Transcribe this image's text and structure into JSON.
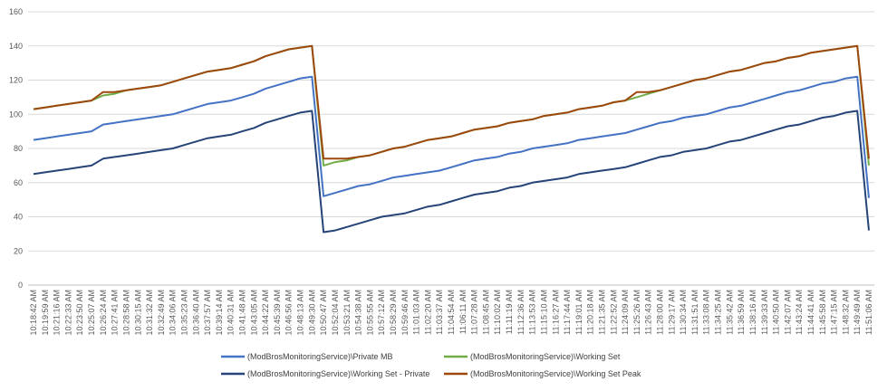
{
  "chart_data": {
    "type": "line",
    "title": "",
    "xlabel": "",
    "ylabel": "",
    "ylim": [
      0,
      160
    ],
    "yticks": [
      0,
      20,
      40,
      60,
      80,
      100,
      120,
      140,
      160
    ],
    "grid": "horizontal",
    "legend_position": "bottom",
    "x": [
      "10:18:42 AM",
      "10:19:59 AM",
      "10:21:16 AM",
      "10:22:33 AM",
      "10:23:50 AM",
      "10:25:07 AM",
      "10:26:24 AM",
      "10:27:41 AM",
      "10:28:58 AM",
      "10:30:15 AM",
      "10:31:32 AM",
      "10:32:49 AM",
      "10:34:06 AM",
      "10:35:23 AM",
      "10:36:40 AM",
      "10:37:57 AM",
      "10:39:14 AM",
      "10:40:31 AM",
      "10:41:48 AM",
      "10:43:05 AM",
      "10:44:22 AM",
      "10:45:39 AM",
      "10:46:56 AM",
      "10:48:13 AM",
      "10:49:30 AM",
      "10:50:47 AM",
      "10:52:04 AM",
      "10:53:21 AM",
      "10:54:38 AM",
      "10:55:55 AM",
      "10:57:12 AM",
      "10:58:29 AM",
      "10:59:46 AM",
      "11:01:03 AM",
      "11:02:20 AM",
      "11:03:37 AM",
      "11:04:54 AM",
      "11:06:11 AM",
      "11:07:28 AM",
      "11:08:45 AM",
      "11:10:02 AM",
      "11:11:19 AM",
      "11:12:36 AM",
      "11:13:53 AM",
      "11:15:10 AM",
      "11:16:27 AM",
      "11:17:44 AM",
      "11:19:01 AM",
      "11:20:18 AM",
      "11:21:35 AM",
      "11:22:52 AM",
      "11:24:09 AM",
      "11:25:26 AM",
      "11:26:43 AM",
      "11:28:00 AM",
      "11:29:17 AM",
      "11:30:34 AM",
      "11:31:51 AM",
      "11:33:08 AM",
      "11:34:25 AM",
      "11:35:42 AM",
      "11:36:59 AM",
      "11:38:16 AM",
      "11:39:33 AM",
      "11:40:50 AM",
      "11:42:07 AM",
      "11:43:24 AM",
      "11:44:41 AM",
      "11:45:58 AM",
      "11:47:15 AM",
      "11:48:32 AM",
      "11:49:49 AM",
      "11:51:06 AM"
    ],
    "series": [
      {
        "name": "(ModBrosMonitoringService)\\Private MB",
        "color": "#4472c4",
        "values": [
          85,
          86,
          87,
          88,
          89,
          90,
          94,
          95,
          96,
          97,
          98,
          99,
          100,
          102,
          104,
          106,
          107,
          108,
          110,
          112,
          115,
          117,
          119,
          121,
          122,
          52,
          54,
          56,
          58,
          59,
          61,
          63,
          64,
          65,
          66,
          67,
          69,
          71,
          73,
          74,
          75,
          77,
          78,
          80,
          81,
          82,
          83,
          85,
          86,
          87,
          88,
          89,
          91,
          93,
          95,
          96,
          98,
          99,
          100,
          102,
          104,
          105,
          107,
          109,
          111,
          113,
          114,
          116,
          118,
          119,
          121,
          122,
          51
        ]
      },
      {
        "name": "(ModBrosMonitoringService)\\Working Set",
        "color": "#70ad47",
        "values": [
          103,
          104,
          105,
          106,
          107,
          108,
          111,
          112,
          114,
          115,
          116,
          117,
          119,
          121,
          123,
          125,
          126,
          127,
          129,
          131,
          134,
          136,
          138,
          139,
          140,
          70,
          72,
          73,
          75,
          76,
          78,
          80,
          81,
          83,
          85,
          86,
          87,
          89,
          91,
          92,
          93,
          95,
          96,
          97,
          99,
          100,
          101,
          103,
          104,
          105,
          107,
          108,
          110,
          112,
          114,
          116,
          118,
          120,
          121,
          123,
          125,
          126,
          128,
          130,
          131,
          133,
          134,
          136,
          137,
          138,
          139,
          140,
          70
        ]
      },
      {
        "name": "(ModBrosMonitoringService)\\Working Set - Private",
        "color": "#264478",
        "values": [
          65,
          66,
          67,
          68,
          69,
          70,
          74,
          75,
          76,
          77,
          78,
          79,
          80,
          82,
          84,
          86,
          87,
          88,
          90,
          92,
          95,
          97,
          99,
          101,
          102,
          31,
          32,
          34,
          36,
          38,
          40,
          41,
          42,
          44,
          46,
          47,
          49,
          51,
          53,
          54,
          55,
          57,
          58,
          60,
          61,
          62,
          63,
          65,
          66,
          67,
          68,
          69,
          71,
          73,
          75,
          76,
          78,
          79,
          80,
          82,
          84,
          85,
          87,
          89,
          91,
          93,
          94,
          96,
          98,
          99,
          101,
          102,
          32
        ]
      },
      {
        "name": "(ModBrosMonitoringService)\\Working Set Peak",
        "color": "#9e480e",
        "values": [
          103,
          104,
          105,
          106,
          107,
          108,
          113,
          113,
          114,
          115,
          116,
          117,
          119,
          121,
          123,
          125,
          126,
          127,
          129,
          131,
          134,
          136,
          138,
          139,
          140,
          74,
          74,
          74,
          75,
          76,
          78,
          80,
          81,
          83,
          85,
          86,
          87,
          89,
          91,
          92,
          93,
          95,
          96,
          97,
          99,
          100,
          101,
          103,
          104,
          105,
          107,
          108,
          113,
          113,
          114,
          116,
          118,
          120,
          121,
          123,
          125,
          126,
          128,
          130,
          131,
          133,
          134,
          136,
          137,
          138,
          139,
          140,
          74
        ]
      }
    ]
  }
}
